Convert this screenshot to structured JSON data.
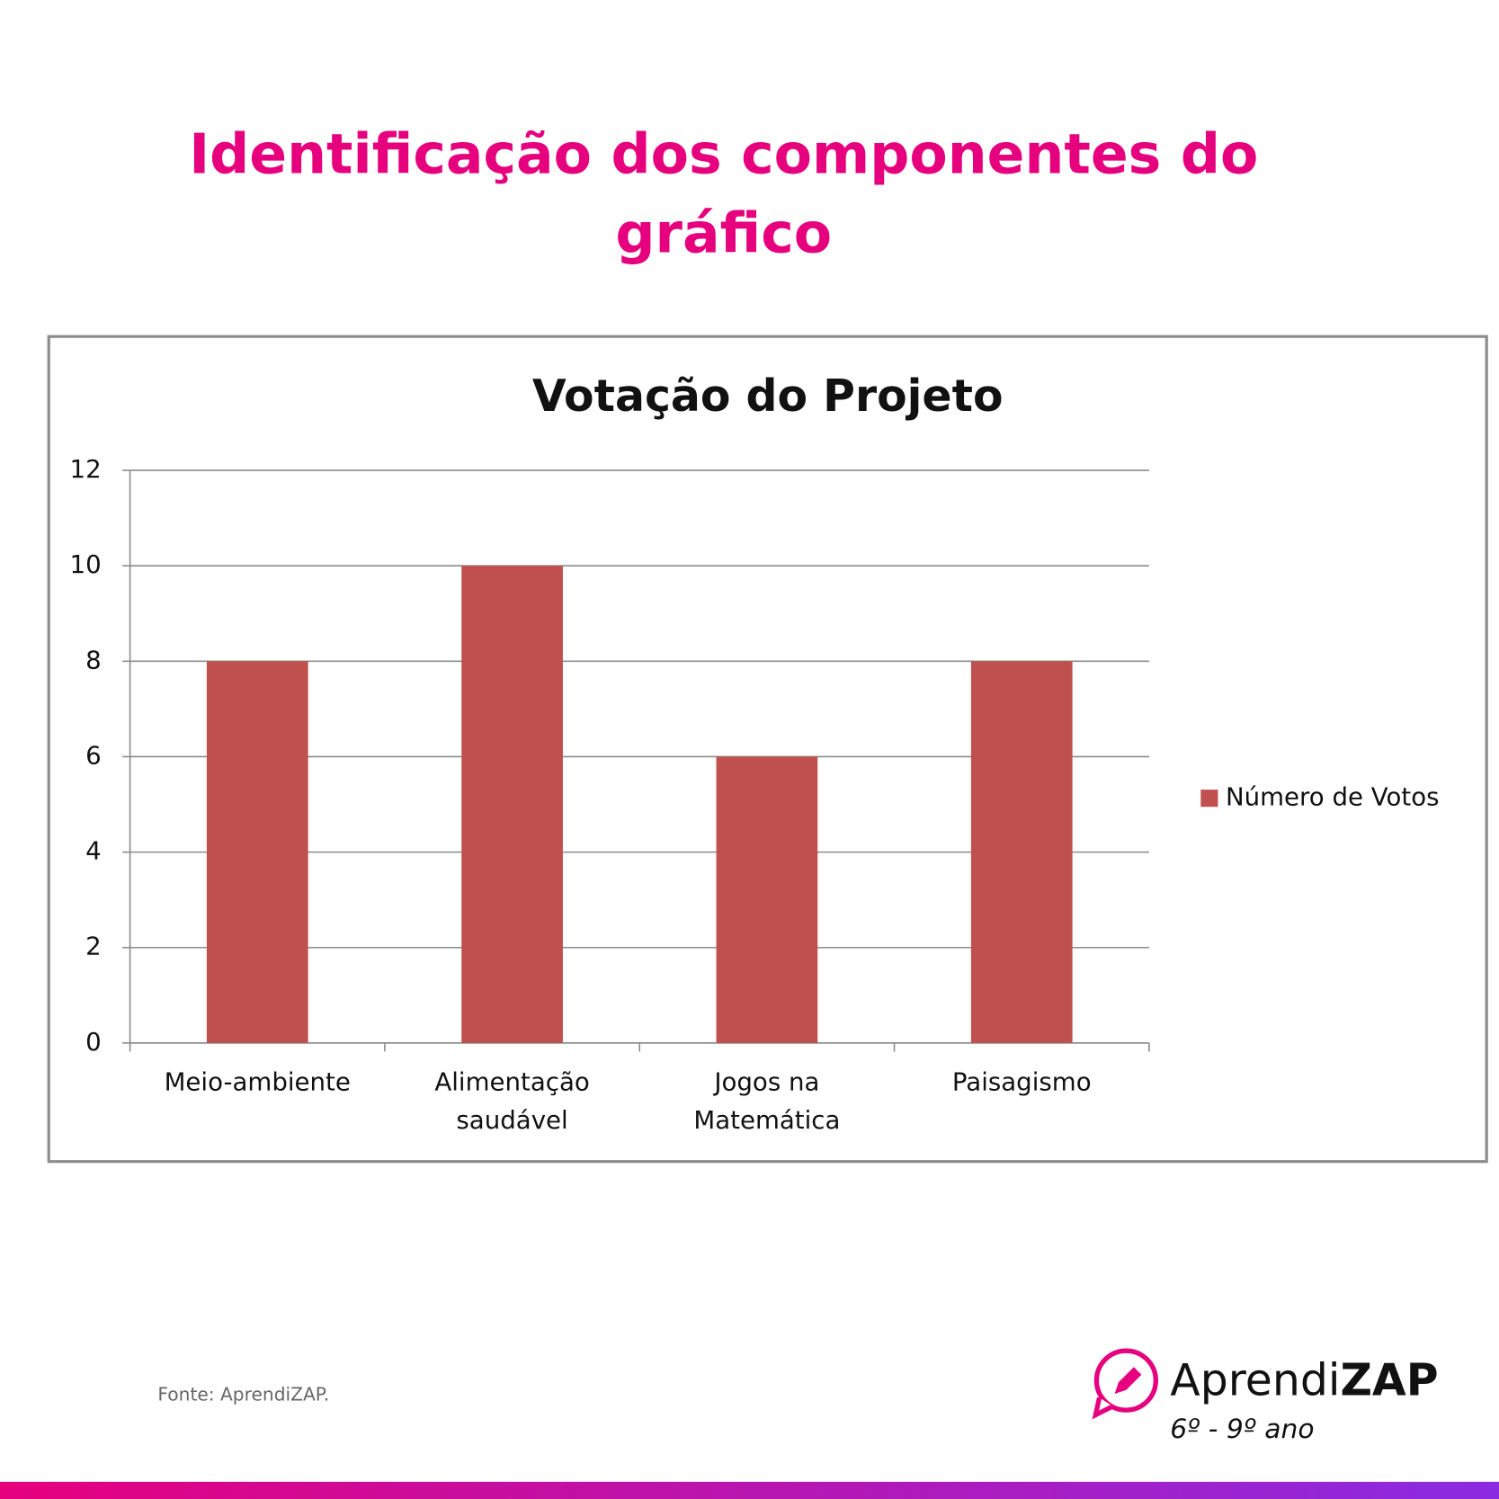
{
  "header": {
    "title": "Identificação dos componentes do gráfico"
  },
  "chart_data": {
    "type": "bar",
    "title": "Votação do Projeto",
    "categories": [
      "Meio-ambiente",
      "Alimentação\nsaudável",
      "Jogos na\nMatemática",
      "Paisagismo"
    ],
    "series": [
      {
        "name": "Número de Votos",
        "color": "#c0504d",
        "values": [
          8,
          10,
          6,
          8
        ]
      }
    ],
    "ylim": [
      0,
      12
    ],
    "yticks": [
      0,
      2,
      4,
      6,
      8,
      10,
      12
    ],
    "grid": true,
    "legend": "right"
  },
  "footer": {
    "source": "Fonte: AprendiZAP.",
    "logo_light": "Aprendi",
    "logo_bold": "ZAP",
    "grade": "6º - 9º ano"
  }
}
